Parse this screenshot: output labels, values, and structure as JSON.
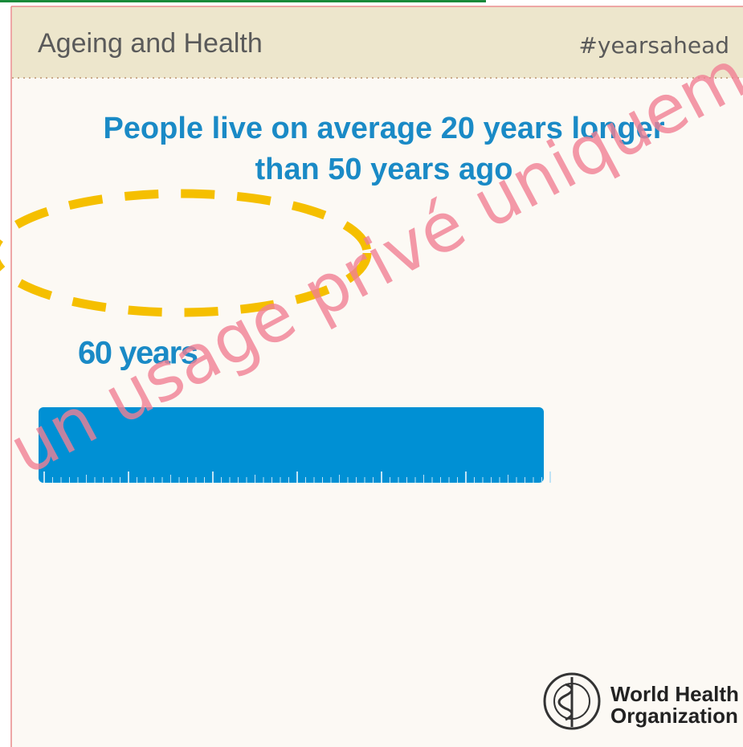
{
  "header": {
    "title": "Ageing and Health",
    "hashtag": "#yearsahead"
  },
  "headline": {
    "lines": [
      "People live on average 20 years longer",
      "than 50 years ago"
    ]
  },
  "bar": {
    "label": "60 years"
  },
  "logo": {
    "lines": [
      "World Health",
      "Organization"
    ]
  },
  "watermark": "un usage privé uniqueme"
}
